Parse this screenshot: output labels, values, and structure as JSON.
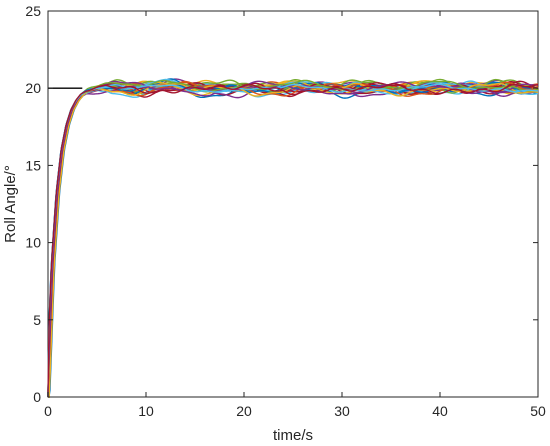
{
  "chart_data": {
    "type": "line",
    "xlabel": "time/s",
    "ylabel": "Roll Angle/°",
    "xlim": [
      0,
      50
    ],
    "ylim": [
      0,
      25
    ],
    "xticks": [
      0,
      10,
      20,
      30,
      40,
      50
    ],
    "yticks": [
      0,
      5,
      10,
      15,
      20,
      25
    ],
    "grid": false,
    "reference": {
      "y": 20,
      "x_range": [
        0,
        3.5
      ],
      "color": "#000000"
    },
    "response": {
      "target": 20,
      "rise_time_s": 4,
      "x": [
        0,
        0.5,
        1,
        1.5,
        2,
        2.5,
        3,
        3.5,
        4,
        5,
        6,
        7,
        8,
        10,
        12,
        15,
        20,
        25,
        30,
        35,
        40,
        45,
        50
      ],
      "y": [
        0,
        8.5,
        13.2,
        16.0,
        17.6,
        18.6,
        19.2,
        19.6,
        19.8,
        20.0,
        20.1,
        20.1,
        20.0,
        20.0,
        20.1,
        20.0,
        20.0,
        20.0,
        20.0,
        20.0,
        20.0,
        20.0,
        20.0
      ],
      "oscillation_band": [
        19.4,
        20.6
      ]
    },
    "series_colors": [
      "#0072BD",
      "#D95319",
      "#EDB120",
      "#7E2F8E",
      "#77AC30",
      "#4DBEEE",
      "#A2142F"
    ],
    "series_count": 28
  }
}
